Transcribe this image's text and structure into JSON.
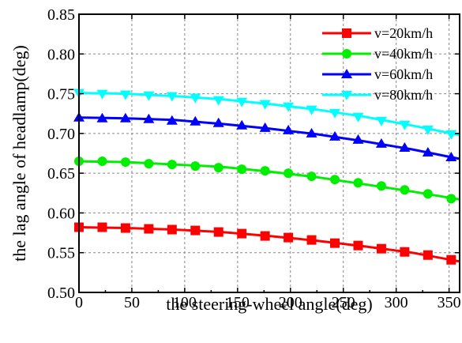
{
  "chart_data": {
    "type": "line",
    "title": "",
    "xlabel": "the steering-wheel angle(deg)",
    "ylabel": "the lag angle of headlamp(deg)",
    "xlim": [
      0,
      360
    ],
    "ylim": [
      0.5,
      0.85
    ],
    "xticks": [
      0,
      50,
      100,
      150,
      200,
      250,
      300,
      350
    ],
    "yticks": [
      0.5,
      0.55,
      0.6,
      0.65,
      0.7,
      0.75,
      0.8,
      0.85
    ],
    "xtick_labels": [
      "0",
      "50",
      "100",
      "150",
      "200",
      "250",
      "300",
      "350"
    ],
    "ytick_labels": [
      "0.50",
      "0.55",
      "0.60",
      "0.65",
      "0.70",
      "0.75",
      "0.80",
      "0.85"
    ],
    "grid": true,
    "legend_position": "top-right",
    "x": [
      0,
      22,
      44,
      66,
      88,
      110,
      132,
      154,
      176,
      198,
      220,
      242,
      264,
      286,
      308,
      330,
      352
    ],
    "series": [
      {
        "name": "v=20km/h",
        "color": "#ff0000",
        "marker": "square",
        "curve": [
          [
            0,
            0.582
          ],
          [
            45,
            0.581
          ],
          [
            90,
            0.579
          ],
          [
            135,
            0.576
          ],
          [
            180,
            0.571
          ],
          [
            225,
            0.565
          ],
          [
            270,
            0.558
          ],
          [
            315,
            0.55
          ],
          [
            360,
            0.539
          ]
        ],
        "values": [
          0.582,
          0.582,
          0.581,
          0.58,
          0.579,
          0.578,
          0.576,
          0.574,
          0.571,
          0.569,
          0.566,
          0.562,
          0.559,
          0.555,
          0.551,
          0.547,
          0.541
        ]
      },
      {
        "name": "v=40km/h",
        "color": "#00ee00",
        "marker": "circle",
        "curve": [
          [
            0,
            0.665
          ],
          [
            45,
            0.664
          ],
          [
            90,
            0.661
          ],
          [
            135,
            0.658
          ],
          [
            180,
            0.652
          ],
          [
            225,
            0.645
          ],
          [
            270,
            0.636
          ],
          [
            315,
            0.627
          ],
          [
            360,
            0.617
          ]
        ],
        "values": [
          0.665,
          0.665,
          0.664,
          0.662,
          0.661,
          0.659,
          0.657,
          0.655,
          0.653,
          0.65,
          0.646,
          0.642,
          0.638,
          0.634,
          0.629,
          0.624,
          0.618
        ]
      },
      {
        "name": "v=60km/h",
        "color": "#0000ff",
        "marker": "triangle-up",
        "curve": [
          [
            0,
            0.72
          ],
          [
            45,
            0.719
          ],
          [
            90,
            0.717
          ],
          [
            135,
            0.712
          ],
          [
            180,
            0.706
          ],
          [
            225,
            0.699
          ],
          [
            270,
            0.69
          ],
          [
            315,
            0.68
          ],
          [
            360,
            0.668
          ]
        ],
        "values": [
          0.72,
          0.719,
          0.719,
          0.718,
          0.716,
          0.715,
          0.713,
          0.71,
          0.707,
          0.704,
          0.7,
          0.696,
          0.692,
          0.687,
          0.682,
          0.676,
          0.67
        ]
      },
      {
        "name": "v=80km/h",
        "color": "#00ffff",
        "marker": "triangle-down",
        "curve": [
          [
            0,
            0.751
          ],
          [
            45,
            0.75
          ],
          [
            90,
            0.747
          ],
          [
            135,
            0.743
          ],
          [
            180,
            0.737
          ],
          [
            225,
            0.73
          ],
          [
            270,
            0.721
          ],
          [
            315,
            0.71
          ],
          [
            360,
            0.698
          ]
        ],
        "values": [
          0.751,
          0.75,
          0.749,
          0.748,
          0.747,
          0.745,
          0.742,
          0.74,
          0.737,
          0.734,
          0.73,
          0.726,
          0.721,
          0.716,
          0.711,
          0.705,
          0.699
        ]
      }
    ]
  }
}
